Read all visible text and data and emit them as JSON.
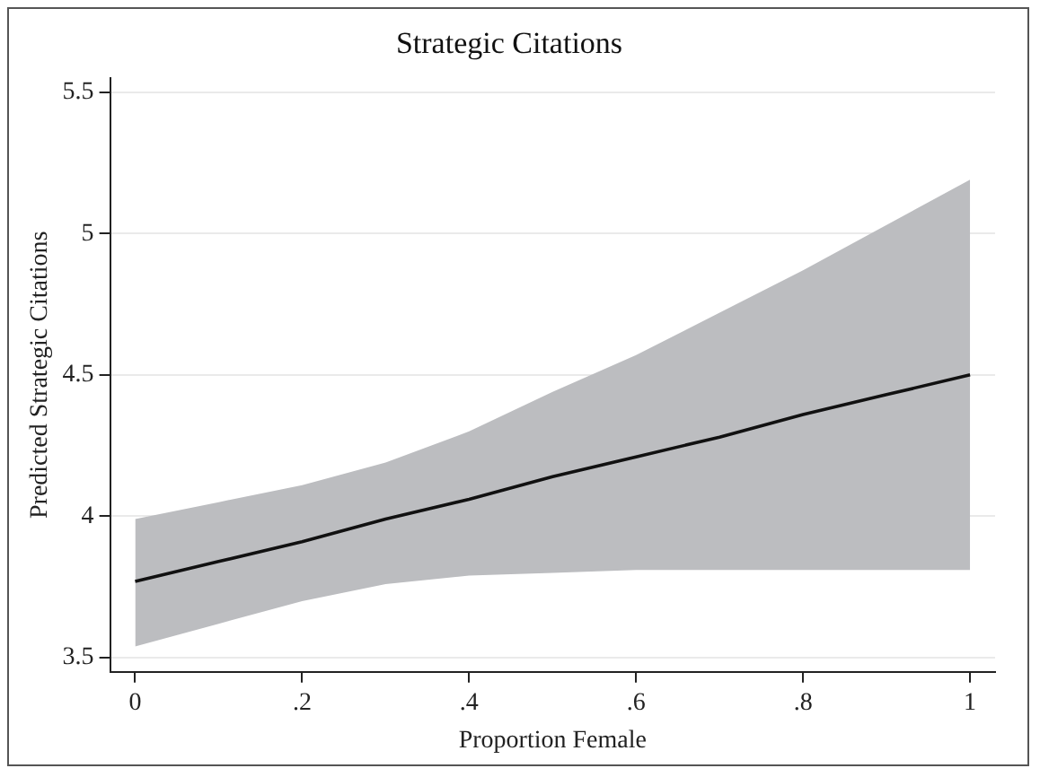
{
  "chart_data": {
    "type": "line",
    "title": "Strategic Citations",
    "xlabel": "Proportion Female",
    "ylabel": "Predicted Strategic Citations",
    "x": [
      0,
      0.1,
      0.2,
      0.3,
      0.4,
      0.5,
      0.6,
      0.7,
      0.8,
      0.9,
      1
    ],
    "series": [
      {
        "color": "#111111",
        "values": [
          3.77,
          3.84,
          3.91,
          3.99,
          4.06,
          4.14,
          4.21,
          4.28,
          4.36,
          4.43,
          4.5
        ],
        "lower": [
          3.54,
          3.62,
          3.7,
          3.76,
          3.79,
          3.8,
          3.81,
          3.81,
          3.81,
          3.81,
          3.81
        ],
        "upper": [
          3.99,
          4.05,
          4.11,
          4.19,
          4.3,
          4.44,
          4.57,
          4.72,
          4.87,
          5.03,
          5.19
        ]
      }
    ],
    "xlim": [
      -0.03,
      1.03
    ],
    "xticks": [
      0,
      {
        "value": 0.2,
        "label": ".2"
      },
      {
        "value": 0.4,
        "label": ".4"
      },
      {
        "value": 0.6,
        "label": ".6"
      },
      {
        "value": 0.8,
        "label": ".8"
      },
      1
    ],
    "ylim": [
      3.45,
      5.55
    ],
    "yticks": [
      3.5,
      4,
      4.5,
      5,
      5.5
    ],
    "grid": "y",
    "legend": false,
    "marker": "none",
    "line_style": "solid"
  }
}
